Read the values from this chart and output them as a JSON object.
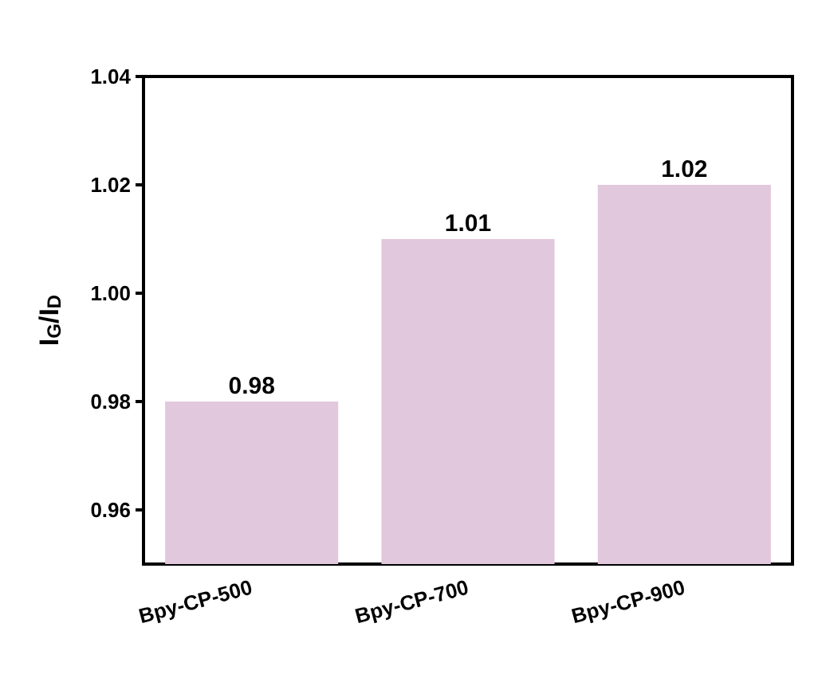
{
  "chart_data": {
    "type": "bar",
    "ylabel": "I$_{G}$/I$_{D}$",
    "categories": [
      "Bpy-CP-500",
      "Bpy-CP-700",
      "Bpy-CP-900"
    ],
    "series": [
      {
        "color": "#e2c8dc",
        "values": [
          0.98,
          1.01,
          1.02
        ]
      }
    ],
    "ylim": [
      0.95,
      1.04
    ],
    "yticks": [
      0.96,
      0.98,
      {
        "value": 1.0,
        "label": "1.00"
      },
      1.02,
      1.04
    ],
    "data_labels": true,
    "grid": false
  }
}
